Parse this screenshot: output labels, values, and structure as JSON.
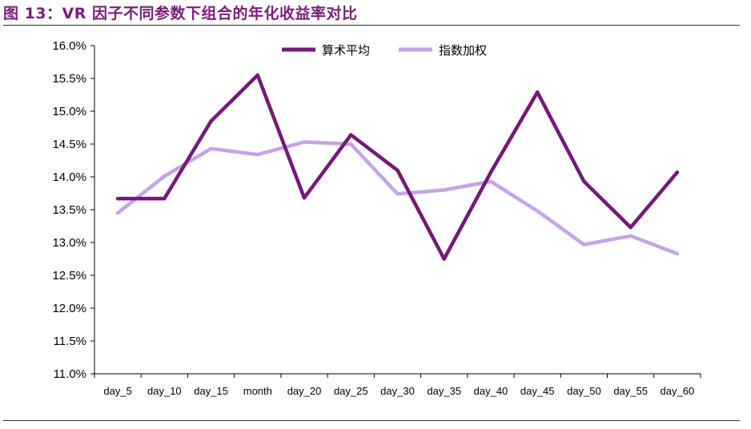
{
  "figure": {
    "title": "图 13：VR 因子不同参数下组合的年化收益率对比"
  },
  "chart_data": {
    "type": "line",
    "title": "",
    "xlabel": "",
    "ylabel": "",
    "categories": [
      "day_5",
      "day_10",
      "day_15",
      "month",
      "day_20",
      "day_25",
      "day_30",
      "day_35",
      "day_40",
      "day_45",
      "day_50",
      "day_55",
      "day_60"
    ],
    "series": [
      {
        "name": "算术平均",
        "color": "#75187a",
        "values": [
          0.1367,
          0.1367,
          0.1485,
          0.1555,
          0.1368,
          0.1464,
          0.141,
          0.1275,
          0.1407,
          0.1529,
          0.1393,
          0.1323,
          0.1407
        ]
      },
      {
        "name": "指数加权",
        "color": "#c5a3ea",
        "values": [
          0.1345,
          0.1401,
          0.1443,
          0.1434,
          0.1453,
          0.145,
          0.1374,
          0.138,
          0.1393,
          0.1348,
          0.1297,
          0.131,
          0.1283
        ]
      }
    ],
    "ylim": [
      0.11,
      0.16
    ],
    "yticks": [
      0.11,
      0.115,
      0.12,
      0.125,
      0.13,
      0.135,
      0.14,
      0.145,
      0.15,
      0.155,
      0.16
    ],
    "ytick_labels": [
      "11.0%",
      "11.5%",
      "12.0%",
      "12.5%",
      "13.0%",
      "13.5%",
      "14.0%",
      "14.5%",
      "15.0%",
      "15.5%",
      "16.0%"
    ],
    "grid": false,
    "legend_position": "top-center"
  }
}
